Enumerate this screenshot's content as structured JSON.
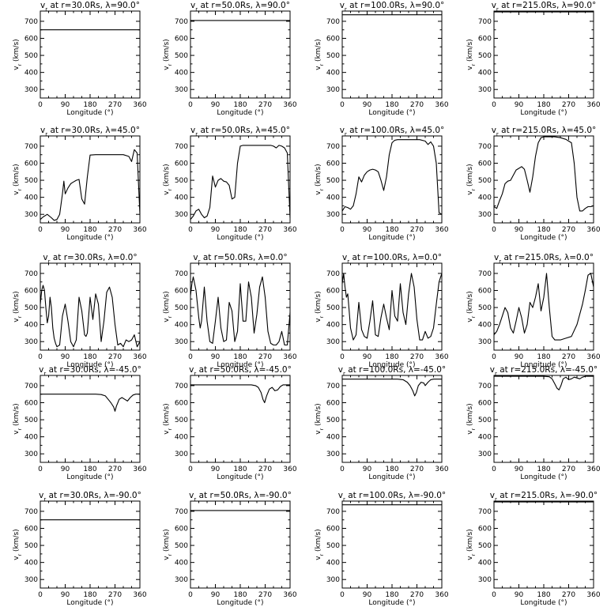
{
  "chart_data": [
    {
      "type": "line",
      "title": "v_r at r=30.0Rs, λ=90.0°",
      "radius": "30.0Rs",
      "latitude": "90.0°",
      "xlabel": "Longitude (°)",
      "ylabel": "v_r (km/s)",
      "xlim": [
        0,
        360
      ],
      "ylim": [
        250,
        760
      ],
      "x": [
        0,
        360
      ],
      "values": [
        650,
        650
      ]
    },
    {
      "type": "line",
      "title": "v_r at r=50.0Rs, λ=90.0°",
      "radius": "50.0Rs",
      "latitude": "90.0°",
      "xlabel": "Longitude (°)",
      "ylabel": "v_r (km/s)",
      "xlim": [
        0,
        360
      ],
      "ylim": [
        250,
        760
      ],
      "x": [
        0,
        360
      ],
      "values": [
        705,
        705
      ]
    },
    {
      "type": "line",
      "title": "v_r at r=100.0Rs, λ=90.0°",
      "radius": "100.0Rs",
      "latitude": "90.0°",
      "xlabel": "Longitude (°)",
      "ylabel": "v_r (km/s)",
      "xlim": [
        0,
        360
      ],
      "ylim": [
        250,
        760
      ],
      "x": [
        0,
        360
      ],
      "values": [
        738,
        738
      ]
    },
    {
      "type": "line",
      "title": "v_r at r=215.0Rs, λ=90.0°",
      "radius": "215.0Rs",
      "latitude": "90.0°",
      "xlabel": "Longitude (°)",
      "ylabel": "v_r (km/s)",
      "xlim": [
        0,
        360
      ],
      "ylim": [
        250,
        760
      ],
      "x": [
        0,
        360
      ],
      "values": [
        755,
        755
      ]
    },
    {
      "type": "line",
      "title": "v_r at r=30.0Rs, λ=45.0°",
      "radius": "30.0Rs",
      "latitude": "45.0°",
      "xlabel": "Longitude (°)",
      "ylabel": "v_r (km/s)",
      "xlim": [
        0,
        360
      ],
      "ylim": [
        250,
        760
      ],
      "x": [
        0,
        10,
        25,
        40,
        50,
        60,
        70,
        80,
        85,
        90,
        100,
        110,
        120,
        130,
        140,
        150,
        160,
        170,
        180,
        200,
        240,
        270,
        300,
        320,
        330,
        340,
        350,
        360
      ],
      "values": [
        270,
        285,
        300,
        280,
        265,
        270,
        300,
        420,
        495,
        420,
        455,
        480,
        490,
        500,
        505,
        390,
        360,
        520,
        648,
        650,
        650,
        650,
        650,
        640,
        610,
        680,
        660,
        300
      ]
    },
    {
      "type": "line",
      "title": "v_r at r=50.0Rs, λ=45.0°",
      "radius": "50.0Rs",
      "latitude": "45.0°",
      "xlabel": "Longitude (°)",
      "ylabel": "v_r (km/s)",
      "xlim": [
        0,
        360
      ],
      "ylim": [
        250,
        760
      ],
      "x": [
        0,
        10,
        20,
        30,
        40,
        50,
        60,
        70,
        80,
        90,
        100,
        110,
        120,
        130,
        140,
        150,
        160,
        170,
        180,
        190,
        220,
        260,
        290,
        300,
        310,
        320,
        330,
        340,
        350,
        360
      ],
      "values": [
        270,
        290,
        320,
        330,
        300,
        280,
        290,
        340,
        525,
        460,
        500,
        510,
        495,
        490,
        470,
        390,
        400,
        600,
        700,
        705,
        705,
        705,
        705,
        700,
        690,
        705,
        700,
        690,
        660,
        280
      ]
    },
    {
      "type": "line",
      "title": "v_r at r=100.0Rs, λ=45.0°",
      "radius": "100.0Rs",
      "latitude": "45.0°",
      "xlabel": "Longitude (°)",
      "ylabel": "v_r (km/s)",
      "xlim": [
        0,
        360
      ],
      "ylim": [
        250,
        760
      ],
      "x": [
        0,
        10,
        20,
        30,
        40,
        50,
        60,
        70,
        80,
        90,
        100,
        110,
        120,
        130,
        140,
        150,
        160,
        170,
        180,
        190,
        200,
        220,
        250,
        280,
        300,
        310,
        320,
        330,
        340,
        350,
        360
      ],
      "values": [
        320,
        345,
        340,
        330,
        350,
        420,
        520,
        490,
        530,
        550,
        560,
        565,
        560,
        550,
        500,
        440,
        520,
        650,
        720,
        735,
        738,
        738,
        738,
        738,
        730,
        710,
        725,
        700,
        600,
        310,
        300
      ]
    },
    {
      "type": "line",
      "title": "v_r at r=215.0Rs, λ=45.0°",
      "radius": "215.0Rs",
      "latitude": "45.0°",
      "xlabel": "Longitude (°)",
      "ylabel": "v_r (km/s)",
      "xlim": [
        0,
        360
      ],
      "ylim": [
        250,
        760
      ],
      "x": [
        0,
        10,
        20,
        30,
        40,
        50,
        60,
        70,
        80,
        90,
        100,
        110,
        120,
        130,
        140,
        150,
        160,
        170,
        180,
        200,
        220,
        240,
        260,
        270,
        280,
        290,
        300,
        310,
        320,
        330,
        340,
        350,
        360
      ],
      "values": [
        345,
        335,
        380,
        420,
        480,
        495,
        500,
        530,
        560,
        570,
        580,
        565,
        500,
        430,
        520,
        640,
        720,
        750,
        755,
        755,
        755,
        750,
        740,
        730,
        720,
        600,
        400,
        320,
        320,
        335,
        345,
        345,
        350
      ]
    },
    {
      "type": "line",
      "title": "v_r at r=30.0Rs, λ=0.0°",
      "radius": "30.0Rs",
      "latitude": "0.0°",
      "xlabel": "Longitude (°)",
      "ylabel": "v_r (km/s)",
      "xlim": [
        0,
        360
      ],
      "ylim": [
        250,
        760
      ],
      "x": [
        0,
        5,
        10,
        15,
        20,
        25,
        30,
        35,
        40,
        45,
        50,
        55,
        60,
        70,
        80,
        90,
        100,
        110,
        120,
        130,
        140,
        150,
        160,
        165,
        170,
        180,
        190,
        200,
        210,
        220,
        230,
        240,
        250,
        260,
        270,
        280,
        290,
        300,
        310,
        320,
        330,
        340,
        350,
        360
      ],
      "values": [
        520,
        600,
        630,
        600,
        500,
        410,
        450,
        560,
        500,
        380,
        320,
        290,
        270,
        280,
        450,
        520,
        420,
        300,
        270,
        310,
        560,
        480,
        340,
        330,
        350,
        560,
        430,
        580,
        520,
        300,
        420,
        590,
        620,
        560,
        400,
        280,
        290,
        270,
        310,
        300,
        310,
        340,
        270,
        300
      ]
    },
    {
      "type": "line",
      "title": "v_r at r=50.0Rs, λ=0.0°",
      "radius": "50.0Rs",
      "latitude": "0.0°",
      "xlabel": "Longitude (°)",
      "ylabel": "v_r (km/s)",
      "xlim": [
        0,
        360
      ],
      "ylim": [
        250,
        760
      ],
      "x": [
        0,
        5,
        10,
        20,
        30,
        35,
        40,
        50,
        60,
        70,
        80,
        90,
        100,
        110,
        120,
        130,
        140,
        150,
        160,
        170,
        180,
        190,
        200,
        210,
        220,
        230,
        240,
        250,
        260,
        270,
        280,
        290,
        300,
        310,
        320,
        330,
        340,
        350,
        360
      ],
      "values": [
        570,
        640,
        680,
        600,
        440,
        380,
        420,
        620,
        420,
        300,
        290,
        420,
        560,
        380,
        300,
        310,
        530,
        480,
        300,
        360,
        640,
        420,
        420,
        650,
        560,
        350,
        460,
        620,
        680,
        560,
        360,
        290,
        280,
        280,
        300,
        360,
        280,
        280,
        470
      ]
    },
    {
      "type": "line",
      "title": "v_r at r=100.0Rs, λ=0.0°",
      "radius": "100.0Rs",
      "latitude": "0.0°",
      "xlabel": "Longitude (°)",
      "ylabel": "v_r (km/s)",
      "xlim": [
        0,
        360
      ],
      "ylim": [
        250,
        760
      ],
      "x": [
        0,
        5,
        10,
        15,
        20,
        25,
        30,
        40,
        50,
        60,
        70,
        80,
        90,
        100,
        110,
        120,
        130,
        140,
        150,
        160,
        170,
        180,
        190,
        200,
        210,
        220,
        230,
        240,
        250,
        260,
        270,
        280,
        290,
        300,
        310,
        320,
        330,
        340,
        350,
        360
      ],
      "values": [
        640,
        700,
        620,
        560,
        580,
        480,
        380,
        310,
        340,
        530,
        370,
        330,
        320,
        420,
        540,
        340,
        330,
        440,
        520,
        440,
        370,
        600,
        450,
        420,
        640,
        470,
        400,
        580,
        700,
        620,
        430,
        310,
        310,
        360,
        320,
        330,
        380,
        520,
        650,
        700
      ]
    },
    {
      "type": "line",
      "title": "v_r at r=215.0Rs, λ=0.0°",
      "radius": "215.0Rs",
      "latitude": "0.0°",
      "xlabel": "Longitude (°)",
      "ylabel": "v_r (km/s)",
      "xlim": [
        0,
        360
      ],
      "ylim": [
        250,
        760
      ],
      "x": [
        0,
        10,
        20,
        30,
        40,
        50,
        60,
        70,
        80,
        90,
        100,
        110,
        120,
        130,
        140,
        150,
        160,
        170,
        180,
        190,
        200,
        210,
        220,
        240,
        260,
        280,
        300,
        320,
        330,
        340,
        350,
        360
      ],
      "values": [
        340,
        360,
        400,
        450,
        500,
        470,
        380,
        350,
        420,
        500,
        440,
        350,
        400,
        530,
        500,
        560,
        640,
        480,
        560,
        700,
        500,
        330,
        310,
        310,
        320,
        330,
        400,
        520,
        600,
        690,
        700,
        620
      ]
    },
    {
      "type": "line",
      "title": "v_r at r=30.0Rs, λ=-45.0°",
      "radius": "30.0Rs",
      "latitude": "-45.0°",
      "xlabel": "Longitude (°)",
      "ylabel": "v_r (km/s)",
      "xlim": [
        0,
        360
      ],
      "ylim": [
        250,
        760
      ],
      "x": [
        0,
        200,
        220,
        235,
        245,
        255,
        265,
        270,
        275,
        285,
        295,
        305,
        315,
        325,
        335,
        345,
        360
      ],
      "values": [
        650,
        650,
        648,
        640,
        620,
        600,
        575,
        550,
        580,
        620,
        630,
        620,
        610,
        630,
        645,
        650,
        650
      ]
    },
    {
      "type": "line",
      "title": "v_r at r=50.0Rs, λ=-45.0°",
      "radius": "50.0Rs",
      "latitude": "-45.0°",
      "xlabel": "Longitude (°)",
      "ylabel": "v_r (km/s)",
      "xlim": [
        0,
        360
      ],
      "ylim": [
        250,
        760
      ],
      "x": [
        0,
        220,
        235,
        245,
        255,
        262,
        268,
        275,
        285,
        295,
        305,
        315,
        325,
        335,
        345,
        360
      ],
      "values": [
        705,
        705,
        700,
        690,
        660,
        620,
        600,
        640,
        680,
        690,
        670,
        675,
        695,
        705,
        705,
        705
      ]
    },
    {
      "type": "line",
      "title": "v_r at r=100.0Rs, λ=-45.0°",
      "radius": "100.0Rs",
      "latitude": "-45.0°",
      "xlabel": "Longitude (°)",
      "ylabel": "v_r (km/s)",
      "xlim": [
        0,
        360
      ],
      "ylim": [
        250,
        760
      ],
      "x": [
        0,
        200,
        220,
        235,
        245,
        255,
        262,
        268,
        275,
        285,
        295,
        300,
        310,
        320,
        330,
        345,
        360
      ],
      "values": [
        738,
        738,
        735,
        720,
        700,
        670,
        640,
        660,
        700,
        720,
        715,
        700,
        720,
        735,
        738,
        738,
        738
      ]
    },
    {
      "type": "line",
      "title": "v_r at r=215.0Rs, λ=-45.0°",
      "radius": "215.0Rs",
      "latitude": "-45.0°",
      "xlabel": "Longitude (°)",
      "ylabel": "v_r (km/s)",
      "xlim": [
        0,
        360
      ],
      "ylim": [
        250,
        760
      ],
      "x": [
        0,
        180,
        200,
        210,
        220,
        228,
        235,
        242,
        250,
        260,
        270,
        280,
        290,
        300,
        310,
        320,
        330,
        345,
        360
      ],
      "values": [
        755,
        755,
        752,
        740,
        710,
        685,
        675,
        700,
        740,
        750,
        735,
        740,
        750,
        745,
        740,
        750,
        755,
        755,
        755
      ]
    },
    {
      "type": "line",
      "title": "v_r at r=30.0Rs, λ=-90.0°",
      "radius": "30.0Rs",
      "latitude": "-90.0°",
      "xlabel": "Longitude (°)",
      "ylabel": "v_r (km/s)",
      "xlim": [
        0,
        360
      ],
      "ylim": [
        250,
        760
      ],
      "x": [
        0,
        360
      ],
      "values": [
        650,
        650
      ]
    },
    {
      "type": "line",
      "title": "v_r at r=50.0Rs, λ=-90.0°",
      "radius": "50.0Rs",
      "latitude": "-90.0°",
      "xlabel": "Longitude (°)",
      "ylabel": "v_r (km/s)",
      "xlim": [
        0,
        360
      ],
      "ylim": [
        250,
        760
      ],
      "x": [
        0,
        360
      ],
      "values": [
        705,
        705
      ]
    },
    {
      "type": "line",
      "title": "v_r at r=100.0Rs, λ=-90.0°",
      "radius": "100.0Rs",
      "latitude": "-90.0°",
      "xlabel": "Longitude (°)",
      "ylabel": "v_r (km/s)",
      "xlim": [
        0,
        360
      ],
      "ylim": [
        250,
        760
      ],
      "x": [
        0,
        360
      ],
      "values": [
        738,
        738
      ]
    },
    {
      "type": "line",
      "title": "v_r at r=215.0Rs, λ=-90.0°",
      "radius": "215.0Rs",
      "latitude": "-90.0°",
      "xlabel": "Longitude (°)",
      "ylabel": "v_r (km/s)",
      "xlim": [
        0,
        360
      ],
      "ylim": [
        250,
        760
      ],
      "x": [
        0,
        360
      ],
      "values": [
        755,
        755
      ]
    }
  ],
  "axes": {
    "x_ticks": [
      "0",
      "90",
      "180",
      "270",
      "360"
    ],
    "y_ticks": [
      "300",
      "400",
      "500",
      "600",
      "700"
    ],
    "x_tick_values": [
      0,
      90,
      180,
      270,
      360
    ],
    "y_tick_values": [
      300,
      400,
      500,
      600,
      700
    ],
    "xlabel": "Longitude (°)",
    "ylabel": "v_r (km/s)",
    "xlim": [
      0,
      360
    ],
    "ylim": [
      250,
      760
    ]
  },
  "style": {
    "line_color": "#000000",
    "background": "#ffffff",
    "grid": "off",
    "legend": "none"
  }
}
